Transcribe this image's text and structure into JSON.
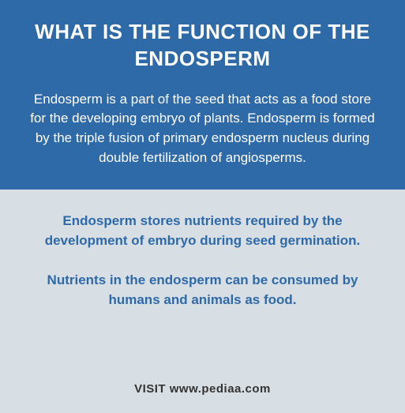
{
  "colors": {
    "top_bg": "#2f6aa8",
    "top_text": "#ffffff",
    "bottom_bg": "#d7dee4",
    "bottom_text": "#2f6aa8",
    "footer_text": "#333333"
  },
  "title": "WHAT IS THE FUNCTION OF THE ENDOSPERM",
  "intro": "Endosperm is a part of the seed that acts as a food store for the developing embryo of plants. Endosperm is formed by the triple fusion of primary endosperm nucleus during double fertilization of angiosperms.",
  "points": [
    "Endosperm stores nutrients required by the development of embryo during seed germination.",
    "Nutrients in the endosperm can be consumed by humans and animals as food."
  ],
  "footer": "VISIT www.pediaa.com"
}
